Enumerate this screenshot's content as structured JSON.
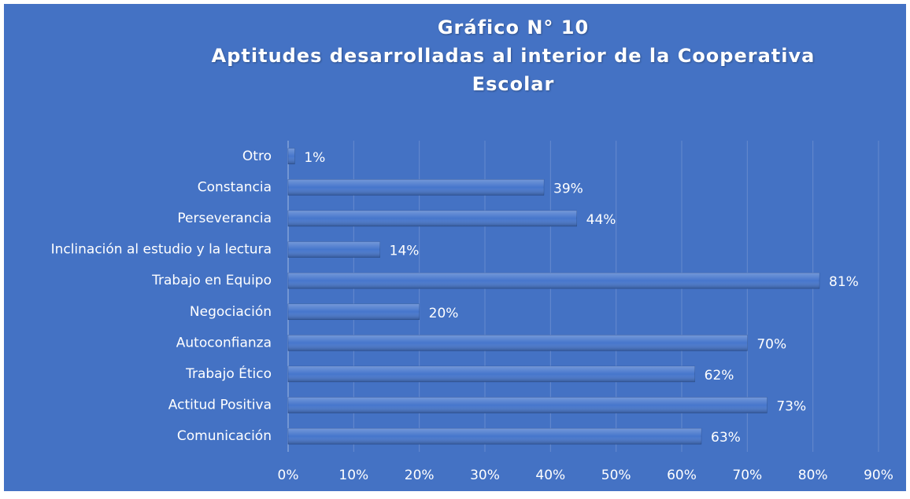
{
  "chart_data": {
    "type": "bar",
    "orientation": "horizontal",
    "title": "Gráfico N° 10",
    "subtitle": "Aptitudes desarrolladas al interior de la Cooperativa Escolar",
    "categories": [
      "Otro",
      "Constancia",
      "Perseverancia",
      "Inclinación al estudio y la lectura",
      "Trabajo en Equipo",
      "Negociación",
      "Autoconfianza",
      "Trabajo Ético",
      "Actitud Positiva",
      "Comunicación"
    ],
    "values": [
      1,
      39,
      44,
      14,
      81,
      20,
      70,
      62,
      73,
      63
    ],
    "value_labels": [
      "1%",
      "39%",
      "44%",
      "14%",
      "81%",
      "20%",
      "70%",
      "62%",
      "73%",
      "63%"
    ],
    "color": "#4676cc",
    "xlim": [
      0,
      90
    ],
    "xticks": [
      {
        "value": 0,
        "label": "0%"
      },
      {
        "value": 10,
        "label": "10%"
      },
      {
        "value": 20,
        "label": "20%"
      },
      {
        "value": 30,
        "label": "30%"
      },
      {
        "value": 40,
        "label": "40%"
      },
      {
        "value": 50,
        "label": "50%"
      },
      {
        "value": 60,
        "label": "60%"
      },
      {
        "value": 70,
        "label": "70%"
      },
      {
        "value": 80,
        "label": "80%"
      },
      {
        "value": 90,
        "label": "90%"
      }
    ],
    "grid": true
  }
}
